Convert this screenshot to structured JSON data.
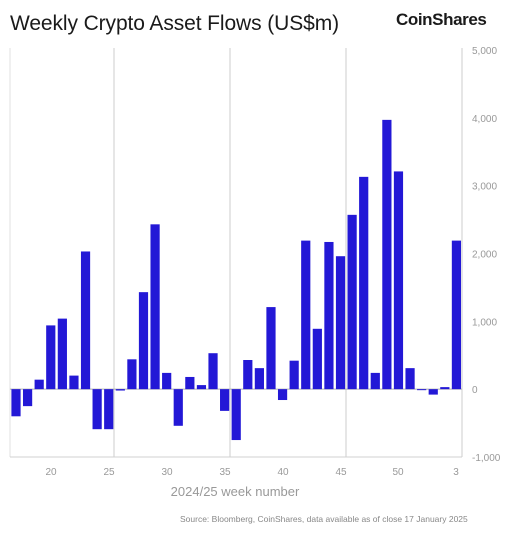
{
  "header": {
    "title": "Weekly Crypto Asset Flows (US$m)",
    "brand": "CoinShares"
  },
  "footer": {
    "source": "Source: Bloomberg, CoinShares, data available as of close 17 January 2025"
  },
  "chart_data": {
    "type": "bar",
    "title": "Weekly Crypto Asset Flows (US$m)",
    "xlabel": "2024/25 week number",
    "ylabel": "",
    "ylim": [
      -1000,
      5000
    ],
    "y_ticks": [
      "5,000",
      "4,000",
      "3,000",
      "2,000",
      "1,000",
      "0",
      "-1,000"
    ],
    "y_tick_values": [
      5000,
      4000,
      3000,
      2000,
      1000,
      0,
      -1000
    ],
    "y_axis_position": "right",
    "grid": true,
    "bar_color": "#2318d6",
    "x_tick_labels": [
      "20",
      "25",
      "30",
      "35",
      "40",
      "45",
      "50",
      "3"
    ],
    "categories": [
      "17",
      "18",
      "19",
      "20",
      "21",
      "22",
      "23",
      "24",
      "25",
      "26",
      "27",
      "28",
      "29",
      "30",
      "31",
      "32",
      "33",
      "34",
      "35",
      "36",
      "37",
      "38",
      "39",
      "40",
      "41",
      "42",
      "43",
      "44",
      "45",
      "46",
      "47",
      "48",
      "49",
      "50",
      "51",
      "52",
      "1",
      "2",
      "3"
    ],
    "values": [
      -400,
      -250,
      140,
      940,
      1040,
      200,
      2030,
      -590,
      -590,
      -20,
      440,
      1430,
      2430,
      240,
      -540,
      180,
      60,
      530,
      -320,
      -750,
      430,
      310,
      1210,
      -160,
      420,
      2190,
      890,
      2170,
      1960,
      2570,
      3130,
      240,
      3970,
      3210,
      310,
      0,
      -80,
      30,
      2190
    ]
  }
}
